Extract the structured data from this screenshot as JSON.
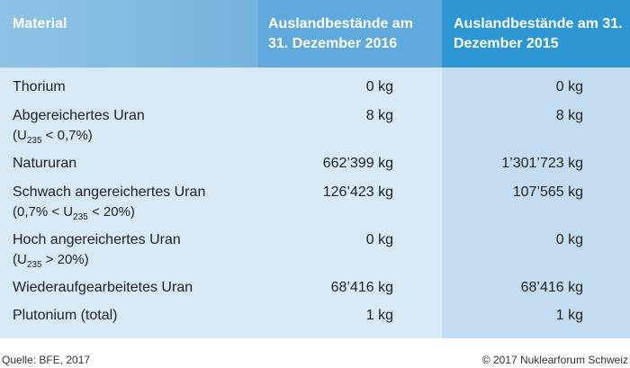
{
  "table": {
    "header": [
      "Material",
      "Auslandbestände am 31. Dezember 2016",
      "Auslandbestände am 31. Dezember 2015"
    ],
    "rows": [
      {
        "label": "Thorium",
        "values": [
          "0 kg",
          "0 kg"
        ]
      },
      {
        "label": "Abgereichertes Uran",
        "note": {
          "before": "(U",
          "sub": "235",
          "after": " < 0,7%)"
        },
        "values": [
          "8 kg",
          "8 kg"
        ]
      },
      {
        "label": "Natururan",
        "values": [
          "662’399 kg",
          "1’301’723 kg"
        ]
      },
      {
        "label": "Schwach angereichertes Uran",
        "note": {
          "before": "(0,7% < U",
          "sub": "235",
          "after": " < 20%)"
        },
        "values": [
          "126’423 kg",
          "107’565 kg"
        ]
      },
      {
        "label": "Hoch angereichertes Uran",
        "note": {
          "before": "(U",
          "sub": "235",
          "after": " > 20%)"
        },
        "values": [
          "0 kg",
          "0 kg"
        ]
      },
      {
        "label": "Wiederaufgearbeitetes Uran",
        "values": [
          "68’416 kg",
          "68’416 kg"
        ]
      },
      {
        "label": "Plutonium (total)",
        "values": [
          "1 kg",
          "1 kg"
        ]
      }
    ]
  },
  "footer": {
    "source": "Quelle: BFE, 2017",
    "copyright": "© 2017 Nuklearforum Schweiz"
  }
}
